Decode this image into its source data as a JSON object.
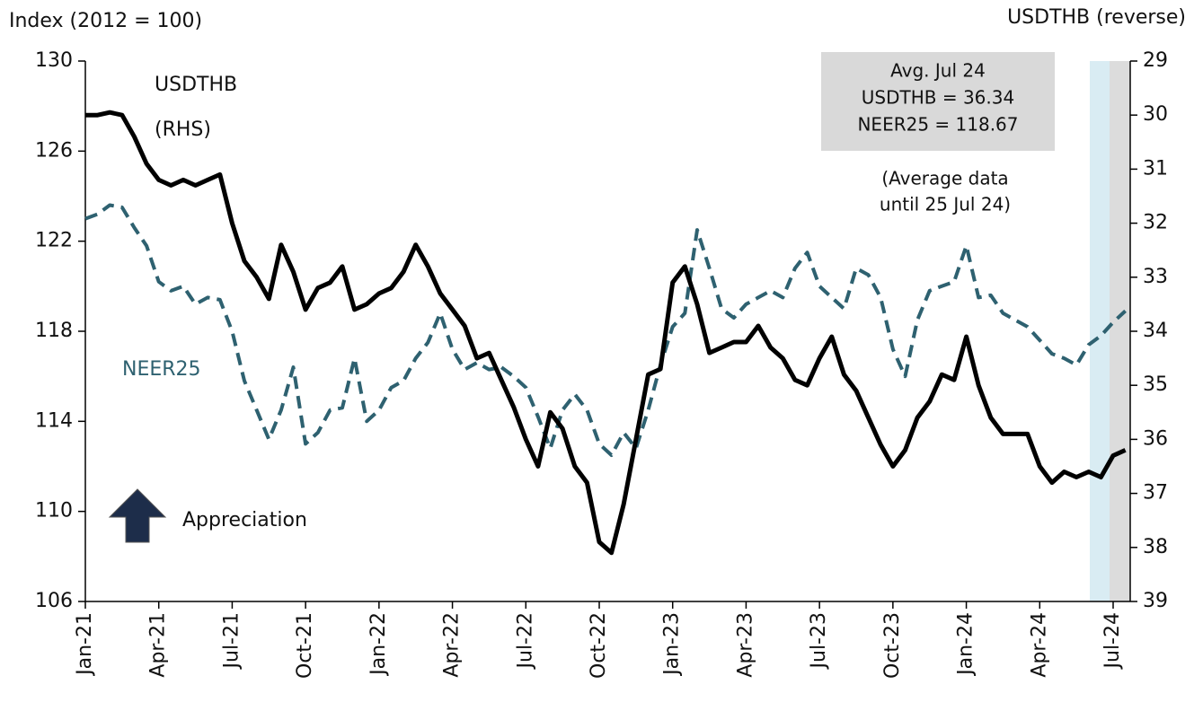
{
  "chart_data": {
    "type": "line",
    "y_label": "Index (2012 = 100)",
    "y2_label": "USDTHB (reverse)",
    "categories": [
      "Jan-21",
      null,
      null,
      null,
      null,
      null,
      "Apr-21",
      null,
      null,
      null,
      null,
      null,
      "Jul-21",
      null,
      null,
      null,
      null,
      null,
      "Oct-21",
      null,
      null,
      null,
      null,
      null,
      "Jan-22",
      null,
      null,
      null,
      null,
      null,
      "Apr-22",
      null,
      null,
      null,
      null,
      null,
      "Jul-22",
      null,
      null,
      null,
      null,
      null,
      "Oct-22",
      null,
      null,
      null,
      null,
      null,
      "Jan-23",
      null,
      null,
      null,
      null,
      null,
      "Apr-23",
      null,
      null,
      null,
      null,
      null,
      "Jul-23",
      null,
      null,
      null,
      null,
      null,
      "Oct-23",
      null,
      null,
      null,
      null,
      null,
      "Jan-24",
      null,
      null,
      null,
      null,
      null,
      "Apr-24",
      null,
      null,
      null,
      null,
      null,
      "Jul-24",
      null
    ],
    "series": [
      {
        "name": "NEER25",
        "color": "#2e6170",
        "dash": true,
        "axis": "y",
        "values": [
          123,
          123.2,
          123.6,
          123.5,
          122.6,
          121.8,
          120.2,
          119.8,
          120.0,
          119.2,
          119.5,
          119.4,
          118.0,
          115.8,
          114.5,
          113.2,
          114.5,
          116.4,
          113.0,
          113.5,
          114.5,
          114.6,
          116.8,
          114.0,
          114.5,
          115.5,
          115.8,
          116.8,
          117.5,
          118.8,
          117.2,
          116.3,
          116.6,
          116.3,
          116.4,
          116.0,
          115.5,
          114.2,
          112.8,
          114.5,
          115.2,
          114.5,
          113.0,
          112.5,
          113.5,
          112.8,
          114.5,
          116.5,
          118.2,
          118.8,
          122.5,
          120.8,
          119.0,
          118.6,
          119.2,
          119.5,
          119.8,
          119.5,
          120.8,
          121.5,
          120.0,
          119.5,
          119.0,
          120.8,
          120.5,
          119.5,
          117.2,
          116.0,
          118.5,
          119.8,
          120.0,
          120.2,
          121.8,
          119.5,
          119.6,
          118.8,
          118.5,
          118.2,
          117.6,
          117.0,
          116.8,
          116.5,
          117.4,
          117.8,
          118.4,
          118.9
        ]
      },
      {
        "name": "USDTHB",
        "color": "#000000",
        "dash": false,
        "axis": "y2",
        "values": [
          30.0,
          30.0,
          29.95,
          30.0,
          30.4,
          30.9,
          31.2,
          31.3,
          31.2,
          31.3,
          31.2,
          31.1,
          32.0,
          32.7,
          33.0,
          33.4,
          32.4,
          32.9,
          33.6,
          33.2,
          33.1,
          32.8,
          33.6,
          33.5,
          33.3,
          33.2,
          32.9,
          32.4,
          32.8,
          33.3,
          33.6,
          33.9,
          34.5,
          34.4,
          34.9,
          35.4,
          36.0,
          36.5,
          35.5,
          35.8,
          36.5,
          36.8,
          37.9,
          38.1,
          37.2,
          36.0,
          34.8,
          34.7,
          33.1,
          32.8,
          33.5,
          34.4,
          34.3,
          34.2,
          34.2,
          33.9,
          34.3,
          34.5,
          34.9,
          35.0,
          34.5,
          34.1,
          34.8,
          35.1,
          35.6,
          36.1,
          36.5,
          36.2,
          35.6,
          35.3,
          34.8,
          34.9,
          34.1,
          35.0,
          35.6,
          35.9,
          35.9,
          35.9,
          36.5,
          36.8,
          36.6,
          36.7,
          36.6,
          36.7,
          36.3,
          36.2
        ]
      }
    ],
    "ylim": [
      106,
      130
    ],
    "yticks": [
      106,
      110,
      114,
      118,
      122,
      126,
      130
    ],
    "y2lim": [
      29,
      39
    ],
    "y2_reversed": true,
    "y2ticks": [
      29,
      30,
      31,
      32,
      33,
      34,
      35,
      36,
      37,
      38,
      39
    ],
    "annotations": {
      "rhs": "(RHS)",
      "appreciation": "Appreciation",
      "box": [
        "Avg. Jul 24",
        "USDTHB = 36.34",
        "NEER25 = 118.67"
      ],
      "note": [
        "(Average data",
        "until 25 Jul 24)"
      ]
    }
  }
}
